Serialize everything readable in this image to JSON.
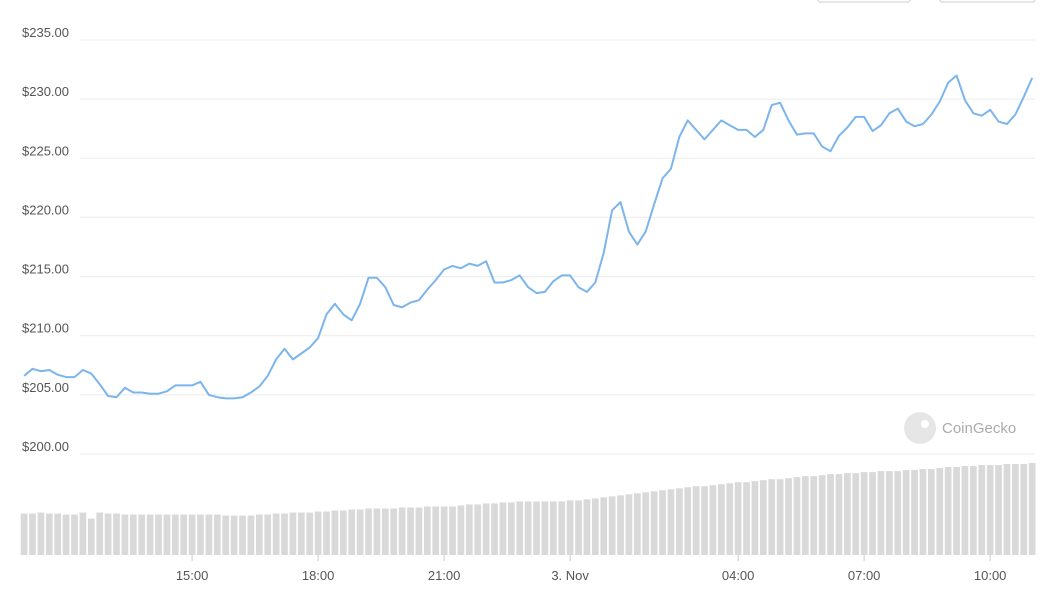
{
  "chart_data": {
    "type": "line",
    "x": [
      11,
      11.2,
      11.4,
      11.6,
      11.8,
      12,
      12.2,
      12.4,
      12.6,
      12.8,
      13,
      13.2,
      13.4,
      13.6,
      13.8,
      14,
      14.2,
      14.4,
      14.6,
      14.8,
      15,
      15.2,
      15.4,
      15.6,
      15.8,
      16,
      16.2,
      16.4,
      16.6,
      16.8,
      17,
      17.2,
      17.4,
      17.6,
      17.8,
      18,
      18.2,
      18.4,
      18.6,
      18.8,
      19,
      19.2,
      19.4,
      19.6,
      19.8,
      20,
      20.2,
      20.4,
      20.6,
      20.8,
      21,
      21.2,
      21.4,
      21.6,
      21.8,
      22,
      22.2,
      22.4,
      22.6,
      22.8,
      23,
      23.2,
      23.4,
      23.6,
      23.8,
      24,
      24.2,
      24.4,
      24.6,
      24.8,
      25,
      25.2,
      25.4,
      25.6,
      25.8,
      26,
      26.2,
      26.4,
      26.6,
      26.8,
      27,
      27.2,
      27.4,
      27.6,
      27.8,
      28,
      28.2,
      28.4,
      28.6,
      28.8,
      29,
      29.2,
      29.4,
      29.6,
      29.8,
      30,
      30.2,
      30.4,
      30.6,
      30.8,
      31,
      31.2,
      31.4,
      31.6,
      31.8,
      32,
      32.2,
      32.4,
      32.6,
      32.8,
      33,
      33.2,
      33.4,
      33.6,
      33.8,
      34,
      34.2,
      34.4,
      34.6,
      34.8,
      35
    ],
    "series": [
      {
        "color": "#7cb5ec",
        "values": [
          206.6,
          207.2,
          207.0,
          207.1,
          206.7,
          206.5,
          206.5,
          207.1,
          206.8,
          205.9,
          204.9,
          204.8,
          205.6,
          205.2,
          205.2,
          205.1,
          205.1,
          205.3,
          205.8,
          205.8,
          205.8,
          206.1,
          205.0,
          204.8,
          204.7,
          204.7,
          204.8,
          205.2,
          205.7,
          206.6,
          208.0,
          208.9,
          208.0,
          208.5,
          209.0,
          209.8,
          211.8,
          212.7,
          211.8,
          211.3,
          212.7,
          214.9,
          214.9,
          214.1,
          212.6,
          212.4,
          212.8,
          213.0,
          213.9,
          214.7,
          215.6,
          215.9,
          215.7,
          216.1,
          215.9,
          216.3,
          214.5,
          214.5,
          214.7,
          215.1,
          214.1,
          213.6,
          213.7,
          214.6,
          215.1,
          215.1,
          214.1,
          213.7,
          214.5,
          217.0,
          220.6,
          221.3,
          218.8,
          217.7,
          218.8,
          221.1,
          223.3,
          224.1,
          226.8,
          228.2,
          227.4,
          226.6,
          227.4,
          228.2,
          227.8,
          227.4,
          227.4,
          226.8,
          227.4,
          229.5,
          229.7,
          228.2,
          227.0,
          227.1,
          227.1,
          226.0,
          225.6,
          226.9,
          227.6,
          228.5,
          228.5,
          227.3,
          227.8,
          228.8,
          229.2,
          228.1,
          227.7,
          227.9,
          228.7,
          229.8,
          231.4,
          232.0,
          229.9,
          228.8,
          228.6,
          229.1,
          228.1,
          227.9,
          228.7,
          230.2,
          231.8
        ]
      }
    ],
    "volume": {
      "color": "#d9d9d9",
      "values": [
        41,
        41,
        42,
        41,
        41,
        40,
        40,
        42,
        36,
        42,
        41,
        41,
        40,
        40,
        40,
        40,
        40,
        40,
        40,
        40,
        40,
        40,
        40,
        40,
        39,
        39,
        39,
        39,
        40,
        40,
        41,
        41,
        42,
        42,
        42,
        43,
        43,
        44,
        44,
        45,
        45,
        46,
        46,
        46,
        46,
        47,
        47,
        47,
        48,
        48,
        48,
        48,
        49,
        50,
        50,
        51,
        51,
        52,
        52,
        53,
        53,
        53,
        53,
        53,
        53,
        54,
        54,
        55,
        56,
        57,
        58,
        59,
        60,
        61,
        62,
        63,
        64,
        65,
        66,
        67,
        68,
        68,
        69,
        70,
        71,
        72,
        72,
        73,
        74,
        75,
        75,
        76,
        77,
        78,
        78,
        79,
        80,
        80,
        81,
        81,
        82,
        82,
        83,
        83,
        83,
        84,
        84,
        85,
        85,
        86,
        87,
        87,
        88,
        88,
        89,
        89,
        89,
        90,
        90,
        90,
        91
      ]
    },
    "xlim": [
      10.95,
      35.02
    ],
    "xticks": [
      {
        "value": 15,
        "label": "15:00"
      },
      {
        "value": 18,
        "label": "18:00"
      },
      {
        "value": 21,
        "label": "21:00"
      },
      {
        "value": 24,
        "label": "3. Nov"
      },
      {
        "value": 28,
        "label": "04:00"
      },
      {
        "value": 31,
        "label": "07:00"
      },
      {
        "value": 34,
        "label": "10:00"
      }
    ],
    "ylim": [
      200,
      235
    ],
    "yticks": [
      {
        "value": 200,
        "label": "$200.00"
      },
      {
        "value": 205,
        "label": "$205.00"
      },
      {
        "value": 210,
        "label": "$210.00"
      },
      {
        "value": 215,
        "label": "$215.00"
      },
      {
        "value": 220,
        "label": "$220.00"
      },
      {
        "value": 225,
        "label": "$225.00"
      },
      {
        "value": 230,
        "label": "$230.00"
      },
      {
        "value": 235,
        "label": "$235.00"
      }
    ],
    "grid": true,
    "watermark": "CoinGecko"
  }
}
